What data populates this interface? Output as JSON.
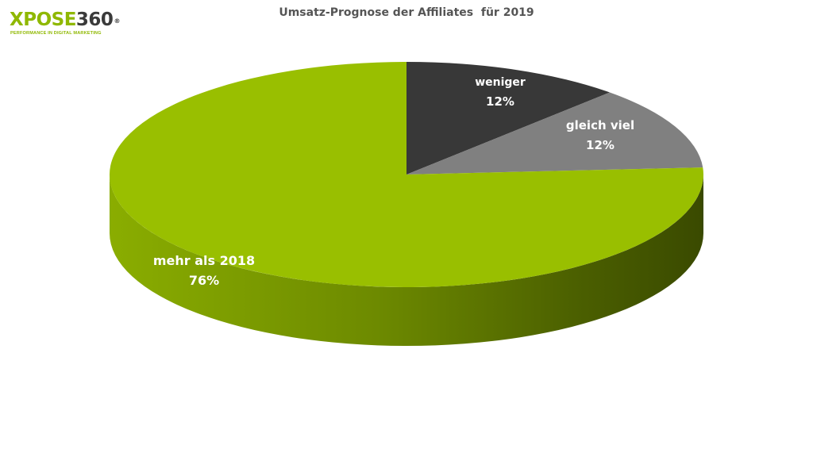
{
  "logo": {
    "word_green": "XPOSE",
    "word_dark": "360",
    "registered": "®",
    "tagline": "PERFORMANCE IN DIGITAL MARKETING",
    "brand_color": "#8fb800"
  },
  "chart_data": {
    "type": "pie",
    "style": "3d",
    "title": "Umsatz-Prognose der Affiliates  für 2019",
    "start_angle_deg": 90,
    "direction": "clockwise",
    "slices": [
      {
        "label": "weniger",
        "value": 12,
        "value_label": "12%",
        "color": "#383838"
      },
      {
        "label": "gleich viel",
        "value": 12,
        "value_label": "12%",
        "color": "#808080"
      },
      {
        "label": "mehr als 2018",
        "value": 76,
        "value_label": "76%",
        "color": "#99bf00"
      }
    ],
    "legend": "none",
    "data_labels": "inside"
  }
}
